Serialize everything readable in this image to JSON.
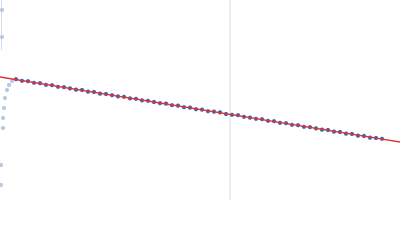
{
  "chart_data": {
    "type": "scatter",
    "xlim": [
      0,
      100
    ],
    "ylim": [
      0,
      50
    ],
    "series": [
      {
        "color": "#b9c9e2",
        "x": [
          0.5,
          0.5,
          0.25,
          0.25,
          0.75,
          0.75,
          1,
          1.25,
          1.75,
          2.25,
          3
        ],
        "values": [
          47.5,
          40.75,
          8.75,
          3.75,
          18,
          20.5,
          23,
          25.5,
          27.5,
          28.75,
          29.75
        ]
      },
      {
        "color": "#3b66b2",
        "x": [
          4,
          5.5,
          7,
          8.5,
          10,
          11.5,
          13,
          14.5,
          16,
          17.5,
          19,
          20.5,
          22,
          23.5,
          25,
          26.5,
          28,
          29.5,
          31,
          32.5,
          34,
          35.5,
          37,
          38.5,
          40,
          41.5,
          43,
          44.5,
          46,
          47.5,
          49,
          50.5,
          52,
          53.5,
          55,
          56.5,
          58,
          59.5,
          61,
          62.5,
          64,
          65.5,
          67,
          68.5,
          70,
          71.5,
          73,
          74.5,
          76,
          77.5,
          79,
          80.5,
          82,
          83.5,
          85,
          86.5,
          88,
          89.5,
          91,
          92.5,
          94,
          95.5
        ],
        "values": [
          30.2,
          29.8,
          29.7,
          29.3,
          29.2,
          28.8,
          28.7,
          28.3,
          28.2,
          27.9,
          27.6,
          27.5,
          27.1,
          27.0,
          26.6,
          26.5,
          26.2,
          25.9,
          25.8,
          25.4,
          25.3,
          24.9,
          24.8,
          24.5,
          24.2,
          24.1,
          23.7,
          23.6,
          23.2,
          23.1,
          22.7,
          22.6,
          22.2,
          22.1,
          21.9,
          21.5,
          21.3,
          21.2,
          20.8,
          20.6,
          20.3,
          20.2,
          19.8,
          19.7,
          19.3,
          19.2,
          18.8,
          18.7,
          18.3,
          18.2,
          17.9,
          17.6,
          17.5,
          17.1,
          17.0,
          16.6,
          16.5,
          16.1,
          16.0,
          15.6,
          15.5,
          15.3
        ]
      },
      {
        "type": "line",
        "color": "#e03434",
        "x": [
          0,
          100
        ],
        "values": [
          30.75,
          14.5
        ]
      }
    ]
  }
}
